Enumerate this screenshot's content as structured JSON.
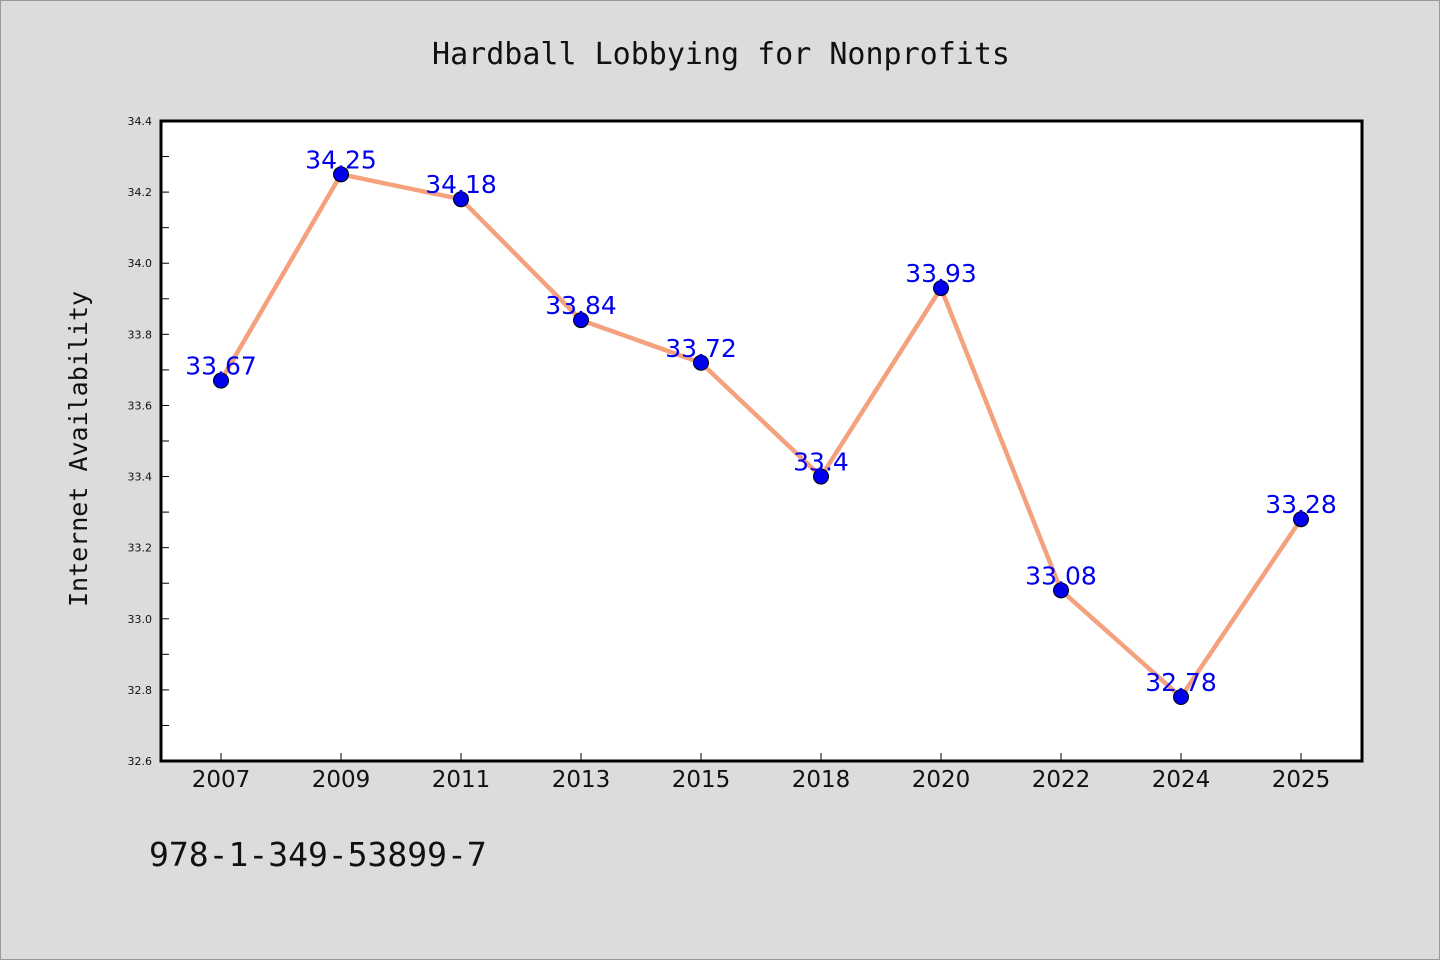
{
  "chart_data": {
    "type": "line",
    "title": "Hardball Lobbying for Nonprofits",
    "ylabel": "Internet Availability",
    "xlabel": "",
    "categories": [
      "2007",
      "2009",
      "2011",
      "2013",
      "2015",
      "2018",
      "2020",
      "2022",
      "2024",
      "2025"
    ],
    "series": [
      {
        "values": [
          33.67,
          34.25,
          34.18,
          33.84,
          33.72,
          33.4,
          33.93,
          33.08,
          32.78,
          33.28
        ],
        "labels": [
          "33.67",
          "34.25",
          "34.18",
          "33.84",
          "33.72",
          "33.4",
          "33.93",
          "33.08",
          "32.78",
          "33.28"
        ],
        "line_color": "#f4a27e",
        "marker_color": "#0000ee"
      }
    ],
    "ylim": [
      32.6,
      34.4
    ],
    "yticks": [
      "32.6",
      "32.8",
      "33.0",
      "33.2",
      "33.4",
      "33.6",
      "33.8",
      "34.0",
      "34.2",
      "34.4"
    ],
    "grid": false,
    "legend": "none"
  },
  "footer": {
    "isbn": "978-1-349-53899-7"
  },
  "colors": {
    "background": "#dcdcdc",
    "plot_background": "#ffffff",
    "axis": "#000000",
    "label": "#0000ee"
  }
}
